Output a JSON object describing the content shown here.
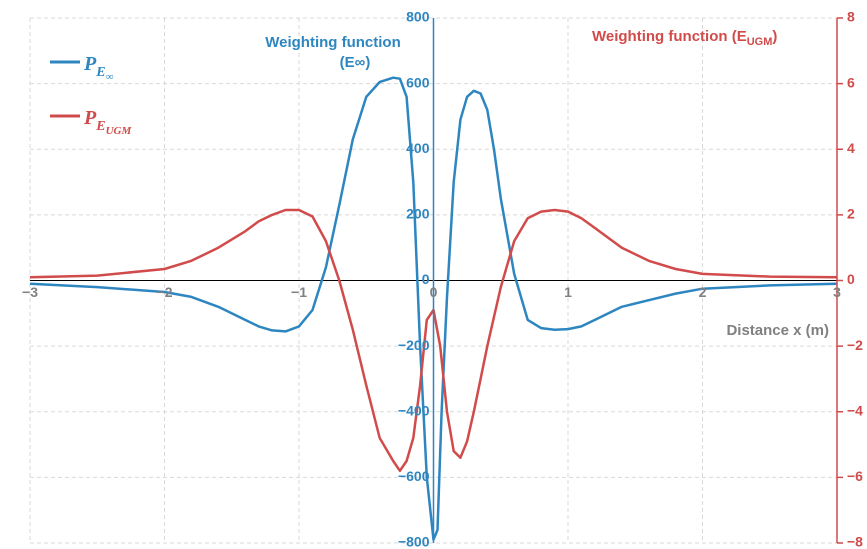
{
  "chart_data": {
    "type": "line",
    "x_axis": {
      "label": "Distance x (m)",
      "range": [
        -3,
        3
      ],
      "ticks": [
        -3,
        -2,
        -1,
        0,
        1,
        2,
        3
      ],
      "tick_labels": [
        "−3",
        "−2",
        "−1",
        "0",
        "1",
        "2",
        "3"
      ]
    },
    "y_left_axis": {
      "label_line1": "Weighting function",
      "label_line2": "(E∞)",
      "range": [
        -800,
        800
      ],
      "ticks": [
        -800,
        -600,
        -400,
        -200,
        0,
        200,
        400,
        600,
        800
      ],
      "tick_labels": [
        "−800",
        "−600",
        "−400",
        "−200",
        "0",
        "200",
        "400",
        "600",
        "800"
      ]
    },
    "y_right_axis": {
      "label_main": "Weighting function (E",
      "label_sub": "UGM",
      "label_end": ")",
      "range": [
        -8,
        8
      ],
      "ticks": [
        -8,
        -6,
        -4,
        -2,
        0,
        2,
        4,
        6,
        8
      ],
      "tick_labels": [
        "−8",
        "−6",
        "−4",
        "−2",
        "0",
        "2",
        "4",
        "6",
        "8"
      ]
    },
    "grid": true,
    "legend_position": "top-left",
    "series": [
      {
        "name": "P",
        "name_sub": "E",
        "name_subsub": "∞",
        "axis": "left",
        "color": "#2e86c1",
        "x": [
          -3.0,
          -2.5,
          -2.0,
          -1.8,
          -1.6,
          -1.4,
          -1.3,
          -1.2,
          -1.1,
          -1.0,
          -0.9,
          -0.8,
          -0.7,
          -0.6,
          -0.5,
          -0.4,
          -0.3,
          -0.25,
          -0.2,
          -0.15,
          -0.1,
          -0.05,
          0.0,
          0.03,
          0.06,
          0.1,
          0.15,
          0.2,
          0.25,
          0.3,
          0.35,
          0.4,
          0.45,
          0.5,
          0.6,
          0.7,
          0.8,
          0.9,
          1.0,
          1.1,
          1.2,
          1.4,
          1.6,
          1.8,
          2.0,
          2.5,
          3.0
        ],
        "y": [
          -10,
          -20,
          -35,
          -50,
          -80,
          -120,
          -140,
          -152,
          -155,
          -140,
          -90,
          40,
          230,
          430,
          560,
          605,
          618,
          615,
          560,
          300,
          -200,
          -600,
          -790,
          -760,
          -400,
          -50,
          300,
          490,
          560,
          578,
          570,
          520,
          400,
          250,
          20,
          -120,
          -145,
          -150,
          -148,
          -140,
          -120,
          -80,
          -60,
          -40,
          -25,
          -15,
          -10
        ]
      },
      {
        "name": "P",
        "name_sub": "E",
        "name_subsub": "UGM",
        "axis": "right",
        "color": "#d14b4b",
        "x": [
          -3.0,
          -2.5,
          -2.0,
          -1.8,
          -1.6,
          -1.4,
          -1.3,
          -1.2,
          -1.1,
          -1.0,
          -0.9,
          -0.8,
          -0.7,
          -0.6,
          -0.5,
          -0.4,
          -0.3,
          -0.25,
          -0.2,
          -0.15,
          -0.1,
          -0.05,
          0.0,
          0.05,
          0.1,
          0.15,
          0.2,
          0.25,
          0.3,
          0.35,
          0.4,
          0.5,
          0.6,
          0.7,
          0.8,
          0.9,
          1.0,
          1.1,
          1.2,
          1.4,
          1.6,
          1.8,
          2.0,
          2.5,
          3.0
        ],
        "y": [
          0.1,
          0.15,
          0.35,
          0.6,
          1.0,
          1.5,
          1.8,
          2.0,
          2.15,
          2.15,
          1.95,
          1.2,
          0.0,
          -1.5,
          -3.2,
          -4.8,
          -5.5,
          -5.8,
          -5.5,
          -4.8,
          -3.2,
          -1.2,
          -0.9,
          -2.0,
          -4.0,
          -5.2,
          -5.4,
          -4.9,
          -4.0,
          -3.0,
          -2.0,
          -0.2,
          1.2,
          1.9,
          2.1,
          2.15,
          2.1,
          1.9,
          1.6,
          1.0,
          0.6,
          0.35,
          0.2,
          0.12,
          0.1
        ]
      }
    ]
  }
}
